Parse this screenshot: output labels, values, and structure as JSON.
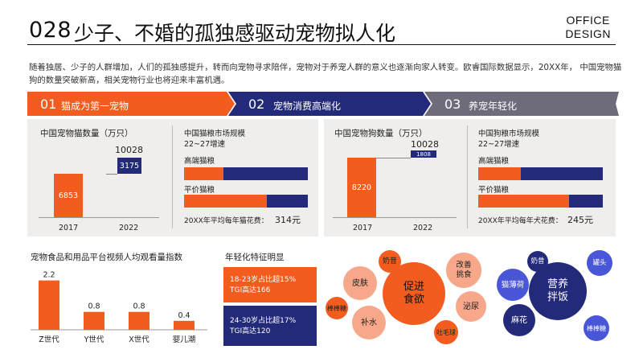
{
  "header": {
    "number": "028",
    "title": "少子、不婚的孤独感驱动宠物拟人化",
    "brand_line1": "OFFICE",
    "brand_line2": "DESIGN"
  },
  "intro": "随着独居、少子的人群增加，人们的孤独感提升，转而向宠物寻求陪伴，宠物对于养宠人群的意义也逐渐向家人转变。欧睿国际数据显示，20XX年，  中国宠物猫狗的数量突破新高，相关宠物行业也将迎来丰富机遇。",
  "steps": [
    {
      "num": "01",
      "label": "猫成为第一宠物",
      "color": "#f25c1e"
    },
    {
      "num": "02",
      "label": "宠物消费高端化",
      "color": "#232a7a"
    },
    {
      "num": "03",
      "label": "养宠年轻化",
      "color": "#6e6b7b"
    }
  ],
  "colors": {
    "orange": "#f25c1e",
    "navy": "#232a7a",
    "grey": "#6e6b7b",
    "panel": "#efeeec"
  },
  "cat_panel": {
    "title": "中国宠物猫数量（万只）",
    "years": [
      "2017",
      "2022"
    ],
    "base_value": "6853",
    "increment_value": "3175",
    "total_value": "10028",
    "market_title": "中国猫粮市场规模",
    "market_sub": "22~27增速",
    "bars": [
      {
        "label": "高端猫粮",
        "orange": 0.32
      },
      {
        "label": "平价猫粮",
        "orange": 0.67
      }
    ],
    "spend_label": "20XX年平均每年猫花费：",
    "spend_value": "314元"
  },
  "dog_panel": {
    "title": "中国宠物狗数量（万只）",
    "years": [
      "2017",
      "2022"
    ],
    "base_value": "8220",
    "increment_value": "1808",
    "total_value": "10028",
    "market_title": "中国狗粮市场规模",
    "market_sub": "22~27增速",
    "bars": [
      {
        "label": "高端猫粮",
        "orange": 0.34
      },
      {
        "label": "平价猫粮",
        "orange": 0.73
      }
    ],
    "spend_label": "20XX年平均每年犬花费：",
    "spend_value": "245元"
  },
  "chart_data": {
    "type": "bar",
    "title": "宠物食品和用品平台视频人均观看量指数",
    "categories": [
      "Z世代",
      "Y世代",
      "X世代",
      "婴儿潮"
    ],
    "values": [
      2.2,
      0.8,
      0.8,
      0.4
    ],
    "value_labels": [
      "2.2",
      "0.8",
      "0.8",
      "0.4"
    ],
    "ylim": [
      0,
      2.5
    ],
    "grid": false
  },
  "youth": {
    "title": "年轻化特征明显",
    "box1_line1": "18-23岁占比超15%",
    "box1_line2": "TGI高达166",
    "box2_line1": "24-30岁占比超17%",
    "box2_line2": "TGI高达120"
  },
  "cat_bubbles": {
    "center_line1": "促进",
    "center_line2": "食欲",
    "items": [
      "奶昔",
      "皮肤",
      "改善挑食",
      "棒棒糖",
      "补水",
      "泌尿",
      "吐毛球"
    ]
  },
  "dog_bubbles": {
    "center_line1": "营养",
    "center_line2": "拌饭",
    "items": [
      "奶昔",
      "罐头",
      "猫薄荷",
      "麻花",
      "棒棒糖"
    ]
  }
}
